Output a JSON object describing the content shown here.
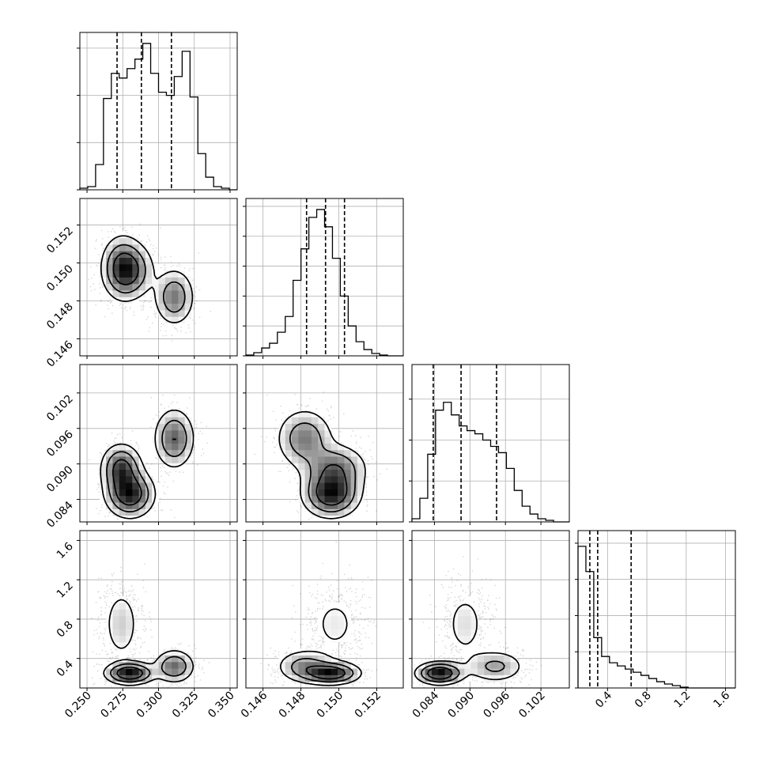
{
  "chart_data": {
    "type": "corner",
    "params": [
      {
        "range": [
          0.245,
          0.355
        ],
        "ticks": [
          0.25,
          0.275,
          0.3,
          0.325,
          0.35
        ],
        "tick_labels": [
          "0.250",
          "0.275",
          "0.300",
          "0.325",
          "0.350"
        ],
        "quantiles": [
          0.271,
          0.288,
          0.309
        ],
        "hist": [
          0.01,
          0.02,
          0.16,
          0.58,
          0.74,
          0.71,
          0.77,
          0.83,
          0.93,
          0.74,
          0.62,
          0.6,
          0.72,
          0.88,
          0.59,
          0.23,
          0.08,
          0.02,
          0.01,
          0.0
        ]
      },
      {
        "range": [
          0.1451,
          0.1534
        ],
        "ticks": [
          0.146,
          0.148,
          0.15,
          0.152
        ],
        "tick_labels": [
          "0.146",
          "0.148",
          "0.150",
          "0.152"
        ],
        "quantiles": [
          0.1483,
          0.1493,
          0.1503
        ],
        "hist": [
          0.005,
          0.02,
          0.05,
          0.08,
          0.15,
          0.25,
          0.48,
          0.68,
          0.88,
          0.93,
          0.82,
          0.62,
          0.38,
          0.19,
          0.09,
          0.04,
          0.015,
          0.005,
          0.0,
          0.0
        ]
      },
      {
        "range": [
          0.0802,
          0.1068
        ],
        "ticks": [
          0.084,
          0.09,
          0.096,
          0.102
        ],
        "tick_labels": [
          "0.084",
          "0.090",
          "0.096",
          "0.102"
        ],
        "quantiles": [
          0.0838,
          0.0885,
          0.0945
        ],
        "hist": [
          0.02,
          0.15,
          0.43,
          0.71,
          0.76,
          0.68,
          0.61,
          0.58,
          0.56,
          0.52,
          0.48,
          0.44,
          0.34,
          0.2,
          0.1,
          0.05,
          0.02,
          0.01,
          0.0,
          0.0
        ]
      },
      {
        "range": [
          0.1,
          1.7
        ],
        "ticks": [
          0.4,
          0.8,
          1.2,
          1.6
        ],
        "tick_labels": [
          "0.4",
          "0.8",
          "1.2",
          "1.6"
        ],
        "quantiles": [
          0.22,
          0.3,
          0.64
        ],
        "hist": [
          0.9,
          0.74,
          0.32,
          0.2,
          0.16,
          0.14,
          0.12,
          0.1,
          0.08,
          0.06,
          0.04,
          0.025,
          0.015,
          0.005,
          0.0,
          0.0,
          0.0,
          0.0,
          0.0,
          0.0
        ]
      }
    ],
    "hist_ytick_fracs": [
      [
        0.0,
        0.3,
        0.6,
        0.9
      ],
      [
        0.0,
        0.19,
        0.38,
        0.57,
        0.76,
        0.95
      ],
      [
        0.0,
        0.26,
        0.52,
        0.78
      ],
      [
        0.0,
        0.23,
        0.46,
        0.69,
        0.92
      ]
    ],
    "modes": [
      {
        "w": 0.4,
        "m": [
          0.28,
          0.1496,
          0.0849,
          0.25
        ],
        "s": [
          0.009,
          0.0008,
          0.0021,
          0.06
        ]
      },
      {
        "w": 0.3,
        "m": [
          0.311,
          0.1482,
          0.0943,
          0.32
        ],
        "s": [
          0.0075,
          0.0008,
          0.0027,
          0.09
        ]
      },
      {
        "w": 0.3,
        "m": [
          0.274,
          0.1498,
          0.0892,
          0.75
        ],
        "s": [
          0.0075,
          0.0009,
          0.0022,
          0.22
        ]
      }
    ],
    "grid": true,
    "xlabel": "",
    "ylabel": ""
  }
}
